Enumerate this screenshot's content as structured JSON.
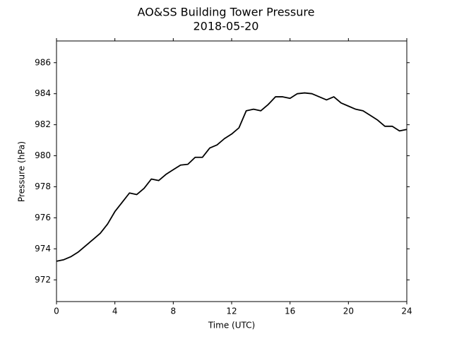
{
  "chart_data": {
    "type": "line",
    "title": "AO&SS Building Tower Pressure",
    "subtitle": "2018-05-20",
    "x_label": "Time (UTC)",
    "y_label": "Pressure (hPa)",
    "x": [
      0,
      0.5,
      1,
      1.5,
      2,
      2.5,
      3,
      3.5,
      4,
      4.5,
      5,
      5.5,
      6,
      6.5,
      7,
      7.5,
      8,
      8.5,
      9,
      9.5,
      10,
      10.5,
      11,
      11.5,
      12,
      12.5,
      13,
      13.5,
      14,
      14.5,
      15,
      15.5,
      16,
      16.5,
      17,
      17.5,
      18,
      18.5,
      19,
      19.5,
      20,
      20.5,
      21,
      21.5,
      22,
      22.5,
      23,
      23.5,
      24
    ],
    "series": [
      {
        "name": "Pressure",
        "color": "#000000",
        "values": [
          973.2,
          973.3,
          973.5,
          973.8,
          974.2,
          974.6,
          975.0,
          975.6,
          976.4,
          977.0,
          977.6,
          977.5,
          977.9,
          978.5,
          978.4,
          978.8,
          979.1,
          979.4,
          979.45,
          979.9,
          979.9,
          980.5,
          980.7,
          981.1,
          981.4,
          981.8,
          982.9,
          983.0,
          982.9,
          983.3,
          983.8,
          983.8,
          983.7,
          984.0,
          984.05,
          984.0,
          983.8,
          983.6,
          983.8,
          983.4,
          983.2,
          983.0,
          982.9,
          982.6,
          982.3,
          981.9,
          981.9,
          981.6,
          981.7
        ]
      }
    ],
    "xlim": [
      0,
      24
    ],
    "xticks": [
      0,
      4,
      8,
      12,
      16,
      20,
      24
    ],
    "ylim": [
      970.6,
      987.4
    ],
    "yticks": [
      972,
      974,
      976,
      978,
      980,
      982,
      984,
      986
    ],
    "grid": false
  }
}
